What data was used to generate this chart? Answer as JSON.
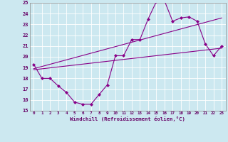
{
  "xlabel": "Windchill (Refroidissement éolien,°C)",
  "bg_color": "#cce8f0",
  "line_color": "#880088",
  "grid_color": "#aad4e0",
  "xlim": [
    -0.5,
    23.5
  ],
  "ylim": [
    15,
    25
  ],
  "xticks": [
    0,
    1,
    2,
    3,
    4,
    5,
    6,
    7,
    8,
    9,
    10,
    11,
    12,
    13,
    14,
    15,
    16,
    17,
    18,
    19,
    20,
    21,
    22,
    23
  ],
  "yticks": [
    15,
    16,
    17,
    18,
    19,
    20,
    21,
    22,
    23,
    24,
    25
  ],
  "data_x": [
    0,
    1,
    2,
    3,
    4,
    5,
    6,
    7,
    8,
    9,
    10,
    11,
    12,
    13,
    14,
    15,
    16,
    17,
    18,
    19,
    20,
    21,
    22,
    23
  ],
  "data_y": [
    19.3,
    18.0,
    18.0,
    17.3,
    16.7,
    15.8,
    15.6,
    15.6,
    16.5,
    17.4,
    20.1,
    20.1,
    21.6,
    21.6,
    23.5,
    25.1,
    25.2,
    23.3,
    23.6,
    23.7,
    23.3,
    21.2,
    20.1,
    21.0
  ],
  "trend1_x": [
    0,
    23
  ],
  "trend1_y": [
    18.8,
    20.8
  ],
  "trend2_x": [
    0,
    23
  ],
  "trend2_y": [
    18.9,
    23.6
  ]
}
